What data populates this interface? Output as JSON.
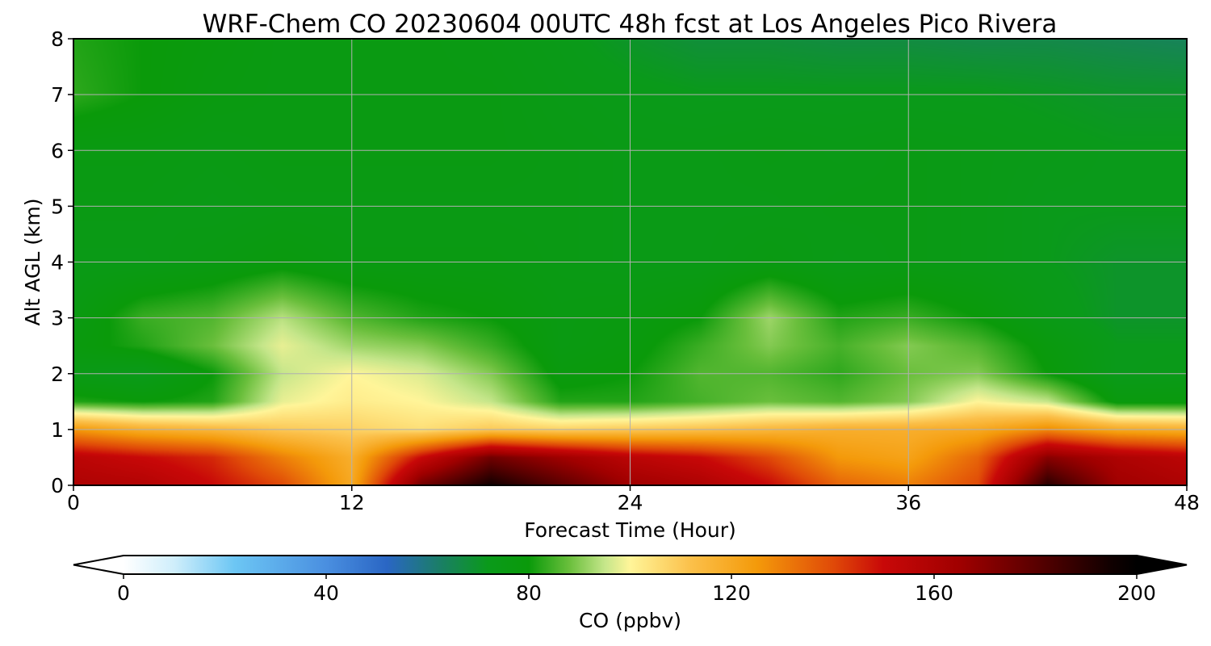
{
  "chart_data": {
    "type": "heatmap",
    "title": "WRF-Chem CO  20230604 00UTC 48h fcst at Los Angeles Pico Rivera",
    "xlabel": "Forecast Time (Hour)",
    "ylabel": "Alt AGL (km)",
    "xlim": [
      0,
      48
    ],
    "ylim": [
      0,
      8
    ],
    "x_ticks": [
      "0",
      "12",
      "24",
      "36",
      "48"
    ],
    "y_ticks": [
      "0",
      "1",
      "2",
      "3",
      "4",
      "5",
      "6",
      "7",
      "8"
    ],
    "grid": true,
    "x": [
      0,
      3,
      6,
      9,
      12,
      15,
      18,
      21,
      24,
      27,
      30,
      33,
      36,
      39,
      42,
      45,
      48
    ],
    "y": [
      0,
      0.5,
      1,
      1.5,
      2,
      2.5,
      3,
      4,
      5,
      6,
      7,
      8
    ],
    "z": [
      [
        160,
        158,
        150,
        140,
        120,
        175,
        195,
        180,
        165,
        160,
        150,
        135,
        130,
        140,
        190,
        165,
        160
      ],
      [
        155,
        150,
        145,
        130,
        118,
        150,
        175,
        165,
        155,
        150,
        140,
        125,
        122,
        135,
        170,
        160,
        155
      ],
      [
        125,
        118,
        115,
        110,
        108,
        105,
        110,
        108,
        110,
        112,
        115,
        118,
        118,
        120,
        128,
        120,
        118
      ],
      [
        82,
        80,
        82,
        98,
        102,
        100,
        95,
        82,
        82,
        85,
        88,
        86,
        90,
        100,
        95,
        78,
        78
      ],
      [
        74,
        72,
        80,
        95,
        100,
        97,
        90,
        78,
        80,
        86,
        86,
        83,
        88,
        90,
        80,
        72,
        73
      ],
      [
        78,
        82,
        88,
        98,
        92,
        90,
        84,
        76,
        78,
        84,
        90,
        85,
        90,
        86,
        78,
        72,
        72
      ],
      [
        76,
        84,
        86,
        94,
        86,
        82,
        80,
        76,
        77,
        80,
        92,
        82,
        84,
        80,
        74,
        70,
        70
      ],
      [
        74,
        74,
        76,
        78,
        76,
        76,
        76,
        75,
        74,
        74,
        76,
        74,
        75,
        74,
        72,
        70,
        70
      ],
      [
        75,
        75,
        74,
        75,
        75,
        75,
        75,
        75,
        74,
        74,
        74,
        75,
        75,
        74,
        72,
        72,
        72
      ],
      [
        76,
        76,
        75,
        76,
        76,
        76,
        76,
        75,
        74,
        74,
        75,
        74,
        75,
        74,
        73,
        72,
        72
      ],
      [
        83,
        80,
        77,
        76,
        76,
        76,
        76,
        74,
        73,
        72,
        72,
        72,
        72,
        72,
        71,
        70,
        70
      ],
      [
        82,
        80,
        78,
        76,
        76,
        76,
        75,
        73,
        70,
        68,
        68,
        67,
        67,
        66,
        66,
        65,
        64
      ]
    ],
    "colorbar": {
      "label": "CO  (ppbv)",
      "min": 0,
      "max": 200,
      "ticks": [
        "0",
        "40",
        "80",
        "120",
        "160",
        "200"
      ],
      "extend": "both",
      "stops": [
        {
          "v": 0,
          "c": "#ffffff"
        },
        {
          "v": 10,
          "c": "#cfeefb"
        },
        {
          "v": 22,
          "c": "#6cc6f4"
        },
        {
          "v": 40,
          "c": "#4a8fe0"
        },
        {
          "v": 52,
          "c": "#2a66c4"
        },
        {
          "v": 62,
          "c": "#1b7d6a"
        },
        {
          "v": 72,
          "c": "#0a9a1a"
        },
        {
          "v": 80,
          "c": "#0a9a0a"
        },
        {
          "v": 88,
          "c": "#6abf3c"
        },
        {
          "v": 95,
          "c": "#c5e68a"
        },
        {
          "v": 100,
          "c": "#fff599"
        },
        {
          "v": 112,
          "c": "#fbc04a"
        },
        {
          "v": 125,
          "c": "#f49a0a"
        },
        {
          "v": 140,
          "c": "#e04a08"
        },
        {
          "v": 150,
          "c": "#c80808"
        },
        {
          "v": 165,
          "c": "#a00000"
        },
        {
          "v": 180,
          "c": "#5a0000"
        },
        {
          "v": 195,
          "c": "#100000"
        },
        {
          "v": 200,
          "c": "#000000"
        }
      ]
    }
  }
}
